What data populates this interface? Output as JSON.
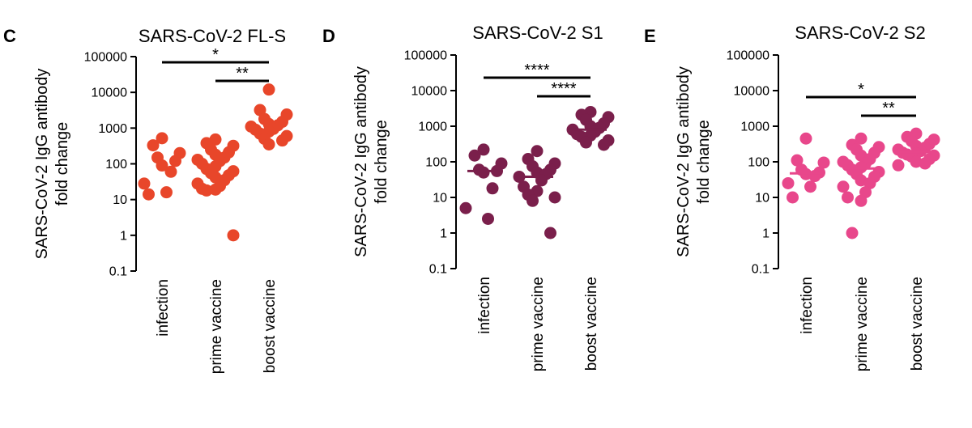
{
  "chart_data": [
    {
      "panel": "C",
      "type": "scatter",
      "title": "SARS-CoV-2 FL-S",
      "ylabel_line1": "SARS-CoV-2 IgG antibody",
      "ylabel_line2": "fold change",
      "yscale": "log",
      "ylim": [
        0.1,
        100000
      ],
      "yticks": [
        "100000",
        "10000",
        "1000",
        "100",
        "10",
        "1",
        "0.1"
      ],
      "categories": [
        "infection",
        "prime vaccine",
        "boost vaccine"
      ],
      "color": "#e8462a",
      "median_mark": false,
      "groups": [
        [
          520,
          330,
          200,
          150,
          120,
          90,
          60,
          28,
          16,
          14
        ],
        [
          480,
          380,
          320,
          250,
          210,
          180,
          150,
          130,
          120,
          100,
          85,
          72,
          62,
          55,
          48,
          42,
          35,
          28,
          24,
          20,
          19,
          18,
          1
        ],
        [
          12000,
          3200,
          2400,
          1800,
          1500,
          1300,
          1200,
          1100,
          950,
          900,
          800,
          700,
          600,
          500,
          450,
          350
        ]
      ],
      "significance": [
        {
          "from": 0,
          "to": 2,
          "label": "*"
        },
        {
          "from": 1,
          "to": 2,
          "label": "**"
        }
      ]
    },
    {
      "panel": "D",
      "type": "scatter",
      "title": "SARS-CoV-2 S1",
      "ylabel_line1": "SARS-CoV-2 IgG antibody",
      "ylabel_line2": "fold change",
      "yscale": "log",
      "ylim": [
        0.1,
        100000
      ],
      "yticks": [
        "100000",
        "10000",
        "1000",
        "100",
        "10",
        "1",
        "0.1"
      ],
      "categories": [
        "infection",
        "prime vaccine",
        "boost vaccine"
      ],
      "color": "#7a1f4b",
      "median_mark": true,
      "groups": [
        [
          220,
          150,
          90,
          60,
          55,
          50,
          18,
          5,
          2.5
        ],
        [
          200,
          120,
          90,
          75,
          60,
          50,
          45,
          38,
          30,
          20,
          15,
          12,
          10,
          8,
          1
        ],
        [
          2500,
          2100,
          1800,
          1500,
          1200,
          1000,
          900,
          800,
          700,
          600,
          550,
          500,
          400,
          350,
          300
        ]
      ],
      "significance": [
        {
          "from": 0,
          "to": 2,
          "label": "****"
        },
        {
          "from": 1,
          "to": 2,
          "label": "****"
        }
      ]
    },
    {
      "panel": "E",
      "type": "scatter",
      "title": "SARS-CoV-2 S2",
      "ylabel_line1": "SARS-CoV-2 IgG antibody",
      "ylabel_line2": "fold change",
      "yscale": "log",
      "ylim": [
        0.1,
        100000
      ],
      "yticks": [
        "100000",
        "10000",
        "1000",
        "100",
        "10",
        "1",
        "0.1"
      ],
      "categories": [
        "infection",
        "prime vaccine",
        "boost vaccine"
      ],
      "color": "#e8478b",
      "median_mark": true,
      "groups": [
        [
          450,
          110,
          95,
          60,
          50,
          45,
          40,
          25,
          20,
          10
        ],
        [
          450,
          300,
          260,
          220,
          180,
          150,
          120,
          100,
          90,
          80,
          70,
          60,
          52,
          45,
          38,
          30,
          25,
          20,
          14,
          10,
          8,
          1
        ],
        [
          620,
          500,
          420,
          380,
          320,
          280,
          250,
          220,
          200,
          180,
          170,
          160,
          150,
          140,
          120,
          100,
          90,
          80
        ]
      ],
      "significance": [
        {
          "from": 0,
          "to": 2,
          "label": "*"
        },
        {
          "from": 1,
          "to": 2,
          "label": "**"
        }
      ]
    }
  ]
}
